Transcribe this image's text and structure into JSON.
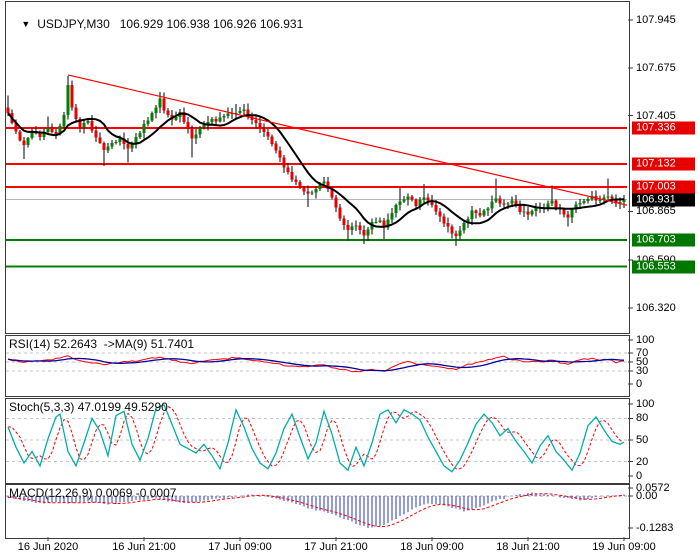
{
  "icons": {
    "symbol_dropdown": "▼"
  },
  "colors": {
    "bg": "#ffffff",
    "text": "#000000",
    "panel_border": "#3c3c3c",
    "bull": "#008000",
    "bear": "#e60000",
    "wick": "#000000",
    "ma": "#000000",
    "level_red": "#ff0000",
    "level_green": "#008000",
    "badge_red": "#e60000",
    "badge_green": "#007800",
    "badge_black": "#000000",
    "current_line": "#b6b6b6",
    "trendline": "#ff0000",
    "rsi_line": "#ff0000",
    "rsi_ma": "#0000a0",
    "stoch_k": "#00adad",
    "stoch_d": "#ff0000",
    "macd_bar": "#2438c8",
    "macd_signal": "#ff0000",
    "grid_dash": "#c6c6c6",
    "zero_dash": "#aaaaaa",
    "tick": "#3c3c3c"
  },
  "chart_data": [
    {
      "type": "candlestick",
      "symbol": "USDJPY,M30",
      "ohlc": "106.929 106.938 106.926 106.931",
      "open": 106.929,
      "high": 106.938,
      "low": 106.926,
      "close": 106.931,
      "bars": 155,
      "grid": false,
      "legend_position": "none",
      "ylim": [
        106.19,
        108.05
      ],
      "x_ticks": [
        {
          "index": 10,
          "label": "16 Jun 2020"
        },
        {
          "index": 34,
          "label": "16 Jun 21:00"
        },
        {
          "index": 58,
          "label": "17 Jun 09:00"
        },
        {
          "index": 82,
          "label": "17 Jun 21:00"
        },
        {
          "index": 106,
          "label": "18 Jun 09:00"
        },
        {
          "index": 130,
          "label": "18 Jun 21:00"
        },
        {
          "index": 154,
          "label": "19 Jun 09:00"
        }
      ],
      "scale_labels": [
        {
          "text": "107.945",
          "price": 107.945
        },
        {
          "text": "107.675",
          "price": 107.675
        },
        {
          "text": "107.405",
          "price": 107.405
        },
        {
          "text": "106.865",
          "price": 106.865
        },
        {
          "text": "106.590",
          "price": 106.59
        },
        {
          "text": "106.320",
          "price": 106.32
        }
      ],
      "levels": [
        {
          "price": 107.336,
          "text": "107.336",
          "color": "red"
        },
        {
          "price": 107.132,
          "text": "107.132",
          "color": "red"
        },
        {
          "price": 107.003,
          "text": "107.003",
          "color": "red"
        },
        {
          "price": 106.703,
          "text": "106.703",
          "color": "green"
        },
        {
          "price": 106.553,
          "text": "106.553",
          "color": "green"
        }
      ],
      "current_price": {
        "value": 106.931,
        "text": "106.931"
      },
      "trendline": {
        "from_index": 15,
        "from_price": 107.635,
        "to_price": 106.9
      },
      "ma_window": 10,
      "price_anchors": [
        [
          0,
          107.42,
          107.52,
          null
        ],
        [
          2,
          107.31
        ],
        [
          4,
          107.24,
          null,
          107.16
        ],
        [
          6,
          107.32
        ],
        [
          8,
          107.28
        ],
        [
          10,
          107.34,
          107.4,
          null
        ],
        [
          12,
          107.3
        ],
        [
          14,
          107.4
        ],
        [
          15,
          107.58,
          107.63,
          null
        ],
        [
          16,
          107.45
        ],
        [
          18,
          107.34
        ],
        [
          20,
          107.37
        ],
        [
          22,
          107.28
        ],
        [
          24,
          107.21,
          null,
          107.12
        ],
        [
          26,
          107.25
        ],
        [
          28,
          107.27
        ],
        [
          30,
          107.21,
          null,
          107.14
        ],
        [
          32,
          107.28
        ],
        [
          34,
          107.35
        ],
        [
          36,
          107.42
        ],
        [
          38,
          107.5,
          107.54,
          null
        ],
        [
          39,
          107.44
        ],
        [
          41,
          107.38
        ],
        [
          43,
          107.42
        ],
        [
          45,
          107.33
        ],
        [
          46,
          107.27,
          null,
          107.17
        ],
        [
          48,
          107.34
        ],
        [
          50,
          107.38
        ],
        [
          52,
          107.38
        ],
        [
          54,
          107.41
        ],
        [
          57,
          107.43,
          107.47,
          null
        ],
        [
          59,
          107.43
        ],
        [
          61,
          107.38
        ],
        [
          63,
          107.33
        ],
        [
          65,
          107.28
        ],
        [
          67,
          107.2
        ],
        [
          69,
          107.12
        ],
        [
          71,
          107.05
        ],
        [
          73,
          107.0
        ],
        [
          75,
          106.96,
          null,
          106.89
        ],
        [
          77,
          107.0
        ],
        [
          79,
          107.03,
          107.06,
          null
        ],
        [
          81,
          106.95
        ],
        [
          83,
          106.82
        ],
        [
          85,
          106.76,
          null,
          106.7
        ],
        [
          87,
          106.79
        ],
        [
          89,
          106.73,
          null,
          106.68
        ],
        [
          91,
          106.81
        ],
        [
          93,
          106.82
        ],
        [
          94,
          106.77,
          null,
          106.71
        ],
        [
          96,
          106.86
        ],
        [
          98,
          106.93,
          107.0,
          null
        ],
        [
          100,
          106.95
        ],
        [
          102,
          106.9
        ],
        [
          104,
          106.95,
          107.02,
          null
        ],
        [
          106,
          106.9
        ],
        [
          108,
          106.83
        ],
        [
          110,
          106.77
        ],
        [
          112,
          106.72,
          null,
          106.67
        ],
        [
          114,
          106.8
        ],
        [
          116,
          106.86
        ],
        [
          118,
          106.84
        ],
        [
          120,
          106.89
        ],
        [
          122,
          106.93,
          107.05,
          null
        ],
        [
          124,
          106.9
        ],
        [
          126,
          106.92
        ],
        [
          128,
          106.87
        ],
        [
          130,
          106.85
        ],
        [
          132,
          106.89
        ],
        [
          134,
          106.88
        ],
        [
          136,
          106.92,
          107.01,
          null
        ],
        [
          138,
          106.87
        ],
        [
          140,
          106.84,
          null,
          106.78
        ],
        [
          142,
          106.9
        ],
        [
          144,
          106.93
        ],
        [
          146,
          106.95
        ],
        [
          148,
          106.92
        ],
        [
          150,
          106.95,
          107.05,
          null
        ],
        [
          152,
          106.92
        ],
        [
          154,
          106.931
        ]
      ]
    },
    {
      "type": "line",
      "label": "RSI(14) 52.2643  ->MA(9) 51.7401",
      "name": "RSI(14)",
      "value": 52.2643,
      "ma_name": "MA(9)",
      "ma_value": 51.7401,
      "ylim": [
        0,
        100
      ],
      "levels": [
        70,
        50,
        30
      ],
      "scale_labels": [
        {
          "text": "100",
          "value": 100
        },
        {
          "text": "70",
          "value": 70
        },
        {
          "text": "50",
          "value": 50
        },
        {
          "text": "30",
          "value": 30
        },
        {
          "text": "0",
          "value": 0
        }
      ],
      "anchors": [
        [
          0,
          56
        ],
        [
          4,
          50
        ],
        [
          8,
          52
        ],
        [
          12,
          57
        ],
        [
          15,
          63
        ],
        [
          18,
          52
        ],
        [
          22,
          47
        ],
        [
          24,
          44
        ],
        [
          28,
          50
        ],
        [
          32,
          52
        ],
        [
          36,
          58
        ],
        [
          38,
          62
        ],
        [
          41,
          54
        ],
        [
          46,
          46
        ],
        [
          50,
          55
        ],
        [
          54,
          57
        ],
        [
          57,
          60
        ],
        [
          61,
          54
        ],
        [
          65,
          50
        ],
        [
          69,
          43
        ],
        [
          73,
          38
        ],
        [
          77,
          43
        ],
        [
          79,
          45
        ],
        [
          81,
          38
        ],
        [
          85,
          30
        ],
        [
          88,
          27
        ],
        [
          91,
          33
        ],
        [
          94,
          30
        ],
        [
          96,
          38
        ],
        [
          98,
          47
        ],
        [
          100,
          50
        ],
        [
          102,
          46
        ],
        [
          106,
          41
        ],
        [
          110,
          36
        ],
        [
          112,
          34
        ],
        [
          114,
          42
        ],
        [
          118,
          50
        ],
        [
          122,
          60
        ],
        [
          124,
          62
        ],
        [
          126,
          56
        ],
        [
          130,
          49
        ],
        [
          132,
          52
        ],
        [
          134,
          50
        ],
        [
          136,
          55
        ],
        [
          138,
          49
        ],
        [
          140,
          45
        ],
        [
          142,
          53
        ],
        [
          144,
          56
        ],
        [
          146,
          59
        ],
        [
          148,
          55
        ],
        [
          150,
          57
        ],
        [
          152,
          49
        ],
        [
          154,
          52.26
        ]
      ]
    },
    {
      "type": "line",
      "label": "Stoch(5,3,3) 47.0199 49.5290",
      "name": "Stoch(5,3,3)",
      "value_k": 47.0199,
      "value_d": 49.529,
      "ylim": [
        0,
        100
      ],
      "levels": [
        80,
        50,
        20
      ],
      "scale_labels": [
        {
          "text": "100",
          "value": 100
        },
        {
          "text": "80",
          "value": 80
        },
        {
          "text": "50",
          "value": 50
        },
        {
          "text": "20",
          "value": 20
        },
        {
          "text": "0",
          "value": 0
        }
      ],
      "anchors": [
        [
          0,
          68
        ],
        [
          2,
          40
        ],
        [
          4,
          18
        ],
        [
          6,
          34
        ],
        [
          8,
          14
        ],
        [
          10,
          52
        ],
        [
          12,
          82
        ],
        [
          13,
          86
        ],
        [
          15,
          34
        ],
        [
          17,
          14
        ],
        [
          19,
          46
        ],
        [
          21,
          80
        ],
        [
          23,
          62
        ],
        [
          25,
          28
        ],
        [
          27,
          84
        ],
        [
          29,
          90
        ],
        [
          31,
          44
        ],
        [
          33,
          22
        ],
        [
          35,
          52
        ],
        [
          37,
          94
        ],
        [
          39,
          99
        ],
        [
          41,
          72
        ],
        [
          43,
          44
        ],
        [
          45,
          38
        ],
        [
          47,
          32
        ],
        [
          49,
          44
        ],
        [
          51,
          28
        ],
        [
          53,
          10
        ],
        [
          55,
          46
        ],
        [
          57,
          92
        ],
        [
          59,
          68
        ],
        [
          61,
          38
        ],
        [
          63,
          18
        ],
        [
          65,
          10
        ],
        [
          67,
          32
        ],
        [
          69,
          66
        ],
        [
          71,
          86
        ],
        [
          73,
          54
        ],
        [
          75,
          24
        ],
        [
          77,
          46
        ],
        [
          79,
          90
        ],
        [
          81,
          58
        ],
        [
          83,
          18
        ],
        [
          85,
          8
        ],
        [
          87,
          40
        ],
        [
          89,
          14
        ],
        [
          91,
          46
        ],
        [
          93,
          86
        ],
        [
          95,
          92
        ],
        [
          97,
          74
        ],
        [
          99,
          92
        ],
        [
          101,
          86
        ],
        [
          103,
          78
        ],
        [
          105,
          54
        ],
        [
          107,
          34
        ],
        [
          109,
          14
        ],
        [
          111,
          6
        ],
        [
          113,
          22
        ],
        [
          115,
          46
        ],
        [
          117,
          72
        ],
        [
          119,
          86
        ],
        [
          121,
          74
        ],
        [
          123,
          56
        ],
        [
          125,
          66
        ],
        [
          127,
          48
        ],
        [
          129,
          34
        ],
        [
          131,
          18
        ],
        [
          133,
          42
        ],
        [
          135,
          56
        ],
        [
          137,
          34
        ],
        [
          139,
          22
        ],
        [
          141,
          8
        ],
        [
          143,
          32
        ],
        [
          145,
          70
        ],
        [
          147,
          82
        ],
        [
          149,
          64
        ],
        [
          151,
          48
        ],
        [
          153,
          44
        ],
        [
          154,
          47
        ]
      ]
    },
    {
      "type": "histogram",
      "label": "MACD(12,26,9) 0.0069 -0.0007",
      "name": "MACD(12,26,9)",
      "value_macd": 0.0069,
      "value_signal": -0.0007,
      "ylim": [
        -0.1283,
        0.0572
      ],
      "scale_labels": [
        {
          "text": "0.0572",
          "value": 0.0572
        },
        {
          "text": "0.00",
          "value": 0.0
        },
        {
          "text": "-0.1283",
          "value": -0.1283
        }
      ],
      "anchors": [
        [
          0,
          -0.004
        ],
        [
          4,
          -0.018
        ],
        [
          8,
          -0.03
        ],
        [
          12,
          -0.024
        ],
        [
          16,
          -0.03
        ],
        [
          20,
          -0.022
        ],
        [
          24,
          -0.034
        ],
        [
          28,
          -0.028
        ],
        [
          32,
          -0.018
        ],
        [
          36,
          -0.01
        ],
        [
          40,
          -0.02
        ],
        [
          44,
          -0.026
        ],
        [
          48,
          -0.022
        ],
        [
          52,
          -0.012
        ],
        [
          56,
          -0.004
        ],
        [
          60,
          0.004
        ],
        [
          64,
          0.0
        ],
        [
          68,
          -0.012
        ],
        [
          72,
          -0.03
        ],
        [
          76,
          -0.052
        ],
        [
          80,
          -0.065
        ],
        [
          84,
          -0.092
        ],
        [
          88,
          -0.115
        ],
        [
          90,
          -0.128
        ],
        [
          93,
          -0.12
        ],
        [
          96,
          -0.1
        ],
        [
          99,
          -0.074
        ],
        [
          102,
          -0.048
        ],
        [
          105,
          -0.028
        ],
        [
          108,
          -0.034
        ],
        [
          111,
          -0.05
        ],
        [
          114,
          -0.06
        ],
        [
          116,
          -0.054
        ],
        [
          119,
          -0.038
        ],
        [
          122,
          -0.018
        ],
        [
          125,
          -0.004
        ],
        [
          128,
          0.006
        ],
        [
          131,
          0.012
        ],
        [
          134,
          0.008
        ],
        [
          137,
          0.0
        ],
        [
          140,
          -0.01
        ],
        [
          143,
          -0.016
        ],
        [
          146,
          -0.008
        ],
        [
          149,
          0.0
        ],
        [
          152,
          0.004
        ],
        [
          154,
          0.0069
        ]
      ]
    }
  ]
}
